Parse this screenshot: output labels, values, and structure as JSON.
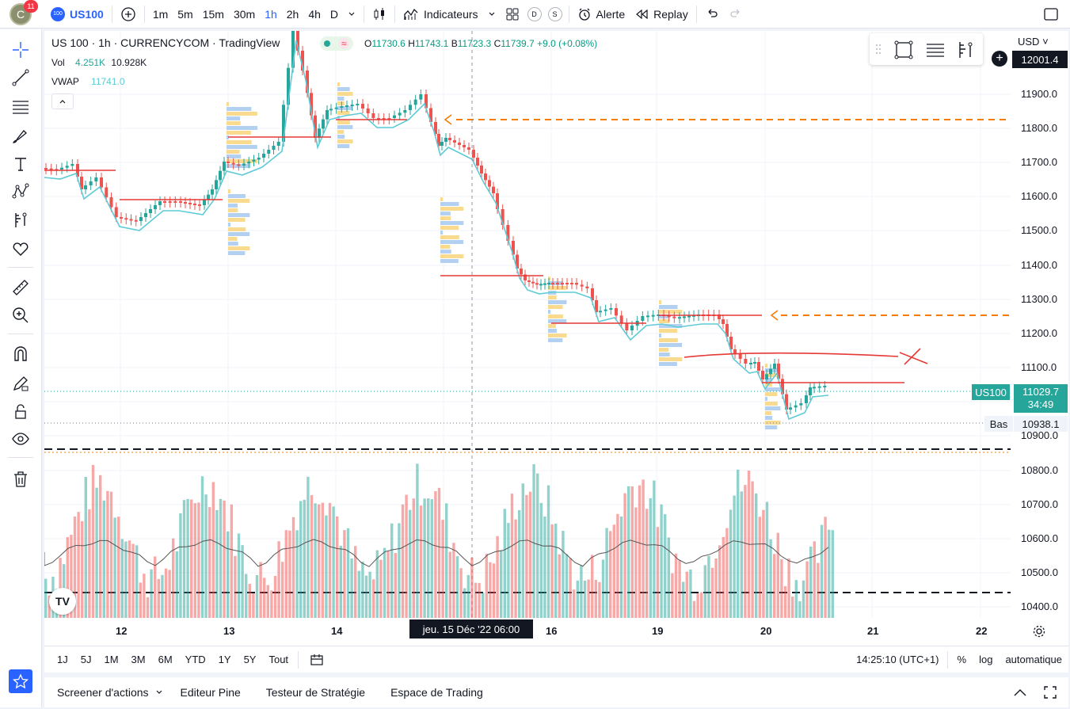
{
  "topbar": {
    "avatar_letter": "C",
    "notif_count": "11",
    "symbol_logo": "100",
    "symbol": "US100",
    "intervals": [
      "1m",
      "5m",
      "15m",
      "30m",
      "1h",
      "2h",
      "4h",
      "D"
    ],
    "active_interval": "1h",
    "indicators_label": "Indicateurs",
    "d_btn": "D",
    "s_btn": "S",
    "alert_label": "Alerte",
    "replay_label": "Replay"
  },
  "legend": {
    "title": "US 100 · 1h · CURRENCYCOM · TradingView",
    "o_label": "O",
    "o": "11730.6",
    "h_label": "H",
    "h": "11743.1",
    "b_label": "B",
    "b": "11723.3",
    "c_label": "C",
    "c": "11739.7",
    "chg": "+9.0 (+0.08%)",
    "vol_label": "Vol",
    "vol1": "4.251K",
    "vol2": "10.928K",
    "vwap_label": "VWAP",
    "vwap": "11741.0"
  },
  "price_axis": {
    "currency": "USD",
    "top_price": "12001.4",
    "labels": [
      "11900.0",
      "11800.0",
      "11700.0",
      "11600.0",
      "11500.0",
      "11400.0",
      "11300.0",
      "11200.0",
      "11100.0",
      "10900.0",
      "10800.0",
      "10700.0",
      "10600.0",
      "10500.0",
      "10400.0"
    ],
    "current_symbol": "US100",
    "current_price": "11029.7",
    "countdown": "34:49",
    "low_label": "Bas",
    "low_price": "10938.1"
  },
  "time_axis": {
    "dates": [
      "12",
      "13",
      "14",
      "16",
      "19",
      "20",
      "21",
      "22"
    ],
    "crosshair_date": "jeu. 15 Déc '22   06:00"
  },
  "ranges": [
    "1J",
    "5J",
    "1M",
    "3M",
    "6M",
    "YTD",
    "1Y",
    "5Y",
    "Tout"
  ],
  "status": {
    "time": "14:25:10 (UTC+1)",
    "pct": "%",
    "log": "log",
    "auto": "automatique"
  },
  "bottom_tabs": [
    "Screener d'actions",
    "Editeur Pine",
    "Testeur de Stratégie",
    "Espace de Trading"
  ],
  "colors": {
    "up": "#26a69a",
    "down": "#ef5350",
    "vwap": "#5ecbd6",
    "accent": "#2962ff",
    "orange": "#f57c00"
  }
}
